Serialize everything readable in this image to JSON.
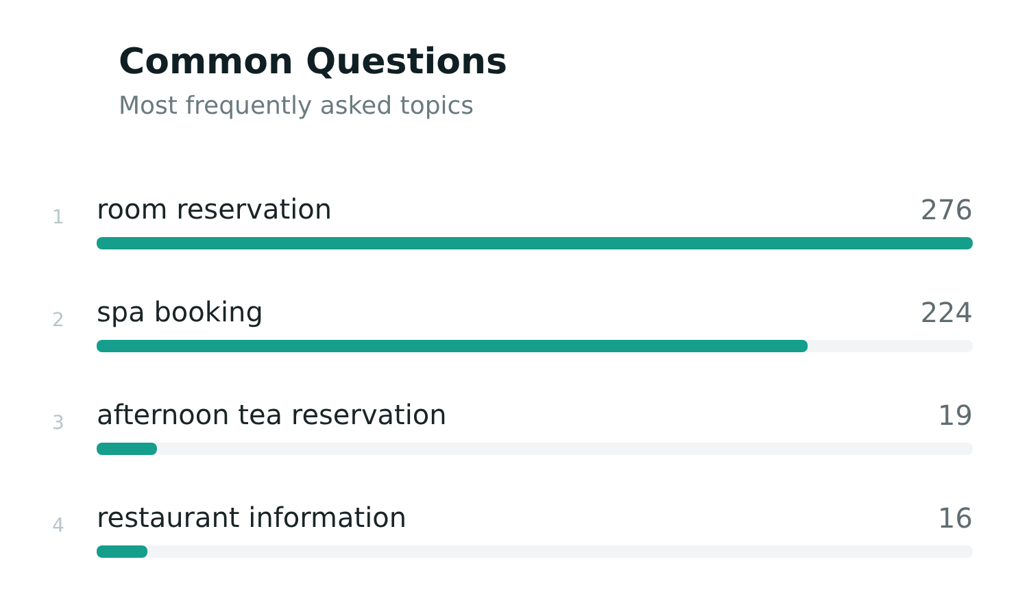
{
  "chart_data": {
    "type": "bar",
    "orientation": "horizontal",
    "title": "Common Questions",
    "subtitle": "Most frequently asked topics",
    "categories": [
      "room reservation",
      "spa booking",
      "afternoon tea reservation",
      "restaurant information"
    ],
    "values": [
      276,
      224,
      19,
      16
    ],
    "color": "#149e8b",
    "xlim": [
      0,
      276
    ],
    "data_labels": true,
    "tick_labels": "y",
    "annotations": [
      "1",
      "2",
      "3",
      "4"
    ]
  }
}
